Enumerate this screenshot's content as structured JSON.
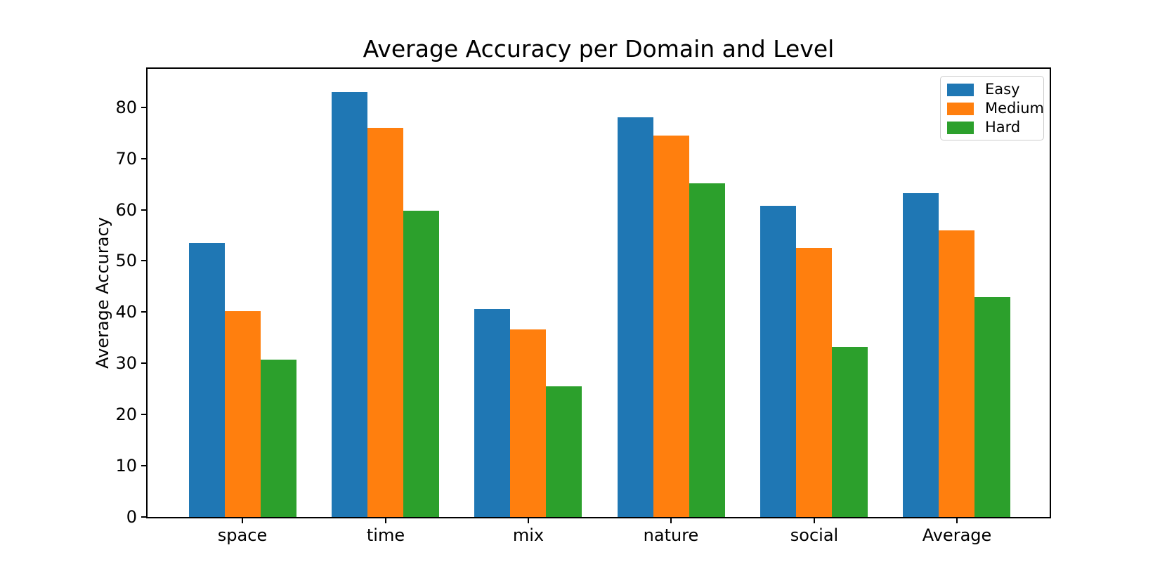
{
  "chart_data": {
    "type": "bar",
    "title": "Average Accuracy per Domain and Level",
    "xlabel": "",
    "ylabel": "Average Accuracy",
    "categories": [
      "space",
      "time",
      "mix",
      "nature",
      "social",
      "Average"
    ],
    "series": [
      {
        "name": "Easy",
        "color": "#1f77b4",
        "values": [
          53.5,
          83.0,
          40.6,
          78.0,
          60.8,
          63.2
        ]
      },
      {
        "name": "Medium",
        "color": "#ff7f0e",
        "values": [
          40.2,
          76.0,
          36.6,
          74.5,
          52.5,
          56.0
        ]
      },
      {
        "name": "Hard",
        "color": "#2ca02c",
        "values": [
          30.7,
          59.8,
          25.5,
          65.2,
          33.2,
          42.9
        ]
      }
    ],
    "yticks": [
      0,
      10,
      20,
      30,
      40,
      50,
      60,
      70,
      80
    ],
    "ylim": [
      0,
      87.5
    ],
    "grid": false,
    "legend_position": "upper right",
    "spine_color": "#000000",
    "background_color": "#ffffff"
  }
}
